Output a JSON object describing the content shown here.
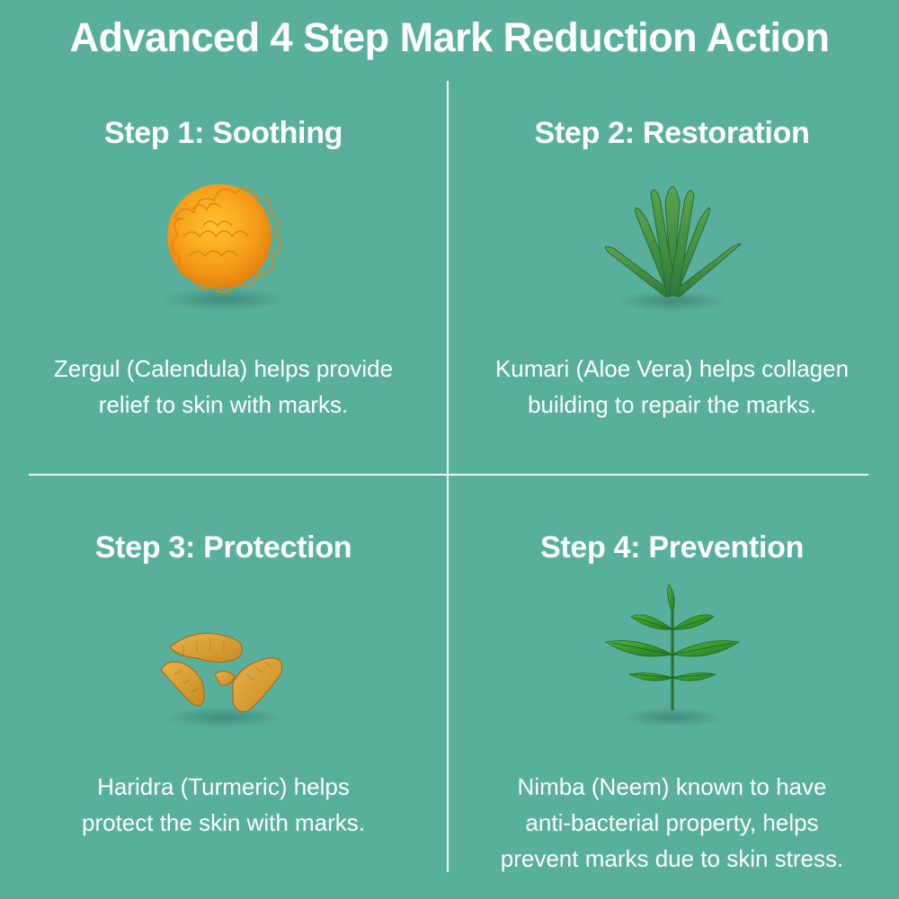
{
  "title": "Advanced 4 Step Mark Reduction Action",
  "steps": [
    {
      "title": "Step 1: Soothing",
      "icon": "marigold-flower-icon",
      "desc_line1": "Zergul (Calendula) helps provide",
      "desc_line2": "relief to skin with marks."
    },
    {
      "title": "Step 2: Restoration",
      "icon": "aloe-vera-icon",
      "desc_line1": "Kumari (Aloe Vera) helps collagen",
      "desc_line2": "building to repair the marks."
    },
    {
      "title": "Step 3: Protection",
      "icon": "turmeric-root-icon",
      "desc_line1": "Haridra (Turmeric) helps",
      "desc_line2": "protect the skin with marks."
    },
    {
      "title": "Step 4: Prevention",
      "icon": "neem-leaf-icon",
      "desc_line1": "Nimba (Neem) known to have",
      "desc_line2": "anti-bacterial property, helps",
      "desc_line3": "prevent marks due to skin stress."
    }
  ],
  "colors": {
    "background": "#58b09c",
    "text": "#ffffff",
    "marigold": "#f5a11c",
    "aloe": "#3f8f45",
    "turmeric": "#d89a2c",
    "neem": "#2f8a2a"
  }
}
